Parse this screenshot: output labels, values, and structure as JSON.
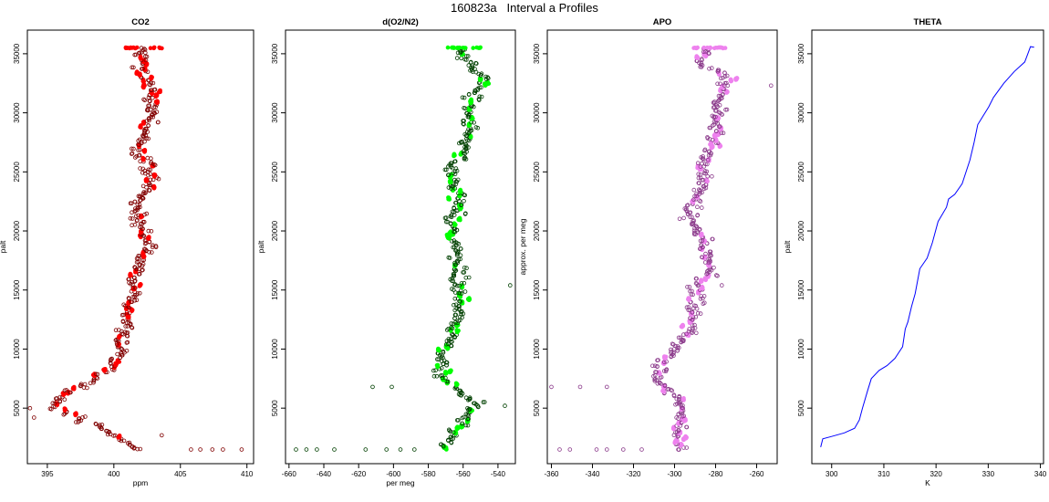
{
  "figure": {
    "title": "160823a   Interval a Profiles"
  },
  "chart_data": [
    {
      "type": "scatter",
      "title": "CO2",
      "xlabel": "ppm",
      "ylabel": "palt",
      "xlim": [
        393.5,
        410.5
      ],
      "ylim": [
        300,
        37000
      ],
      "xticks": [
        395,
        400,
        405,
        410
      ],
      "yticks": [
        5000,
        10000,
        15000,
        20000,
        25000,
        30000,
        35000
      ],
      "color": "#ff0000",
      "edge_color": "#800000",
      "series": [
        {
          "profile": [
            [
              1500,
              401.6
            ],
            [
              2500,
              400.5
            ],
            [
              3500,
              398.5
            ],
            [
              4500,
              397.0
            ],
            [
              5000,
              395.2
            ],
            [
              5800,
              395.8
            ],
            [
              6500,
              396.6
            ],
            [
              7300,
              398.3
            ],
            [
              8200,
              399.6
            ],
            [
              9500,
              400.3
            ],
            [
              11000,
              400.6
            ],
            [
              12500,
              401.0
            ],
            [
              14000,
              401.2
            ],
            [
              16000,
              401.6
            ],
            [
              17500,
              401.9
            ],
            [
              19000,
              402.7
            ],
            [
              20000,
              402.1
            ],
            [
              21000,
              401.8
            ],
            [
              22500,
              401.7
            ],
            [
              24000,
              402.9
            ],
            [
              25500,
              402.6
            ],
            [
              27000,
              401.8
            ],
            [
              28500,
              402.6
            ],
            [
              30000,
              402.8
            ],
            [
              31500,
              402.9
            ],
            [
              33000,
              402.4
            ],
            [
              34500,
              401.9
            ],
            [
              35500,
              402.4
            ]
          ]
        }
      ],
      "outliers": [
        [
          1500,
          405.8
        ],
        [
          1500,
          406.5
        ],
        [
          1500,
          407.4
        ],
        [
          1500,
          408.2
        ],
        [
          1500,
          409.6
        ],
        [
          2700,
          403.6
        ],
        [
          4200,
          394.0
        ],
        [
          5000,
          393.7
        ]
      ]
    },
    {
      "type": "scatter",
      "title": "d(O2/N2)",
      "xlabel": "per meg",
      "ylabel": "palt",
      "xlim": [
        -662,
        -530
      ],
      "ylim": [
        300,
        37000
      ],
      "xticks": [
        -660,
        -640,
        -620,
        -600,
        -580,
        -560,
        -540
      ],
      "yticks": [
        5000,
        10000,
        15000,
        20000,
        25000,
        30000,
        35000
      ],
      "color": "#00ff00",
      "edge_color": "#004000",
      "series": [
        {
          "profile": [
            [
              1500,
              -572
            ],
            [
              2500,
              -567
            ],
            [
              3500,
              -562
            ],
            [
              4500,
              -557
            ],
            [
              5500,
              -552
            ],
            [
              6500,
              -562
            ],
            [
              7500,
              -571
            ],
            [
              9000,
              -573
            ],
            [
              10500,
              -569
            ],
            [
              12000,
              -564
            ],
            [
              13500,
              -562
            ],
            [
              15000,
              -562
            ],
            [
              16500,
              -562
            ],
            [
              18000,
              -564
            ],
            [
              19500,
              -566
            ],
            [
              21000,
              -565
            ],
            [
              22500,
              -563
            ],
            [
              24000,
              -565
            ],
            [
              25500,
              -566
            ],
            [
              27000,
              -558
            ],
            [
              28500,
              -557
            ],
            [
              30000,
              -556
            ],
            [
              31500,
              -553
            ],
            [
              33000,
              -548
            ],
            [
              34000,
              -557
            ],
            [
              35500,
              -561
            ]
          ]
        }
      ],
      "outliers": [
        [
          1500,
          -656
        ],
        [
          1500,
          -650
        ],
        [
          1500,
          -644
        ],
        [
          1500,
          -634
        ],
        [
          1500,
          -616
        ],
        [
          1500,
          -604
        ],
        [
          1500,
          -596
        ],
        [
          1500,
          -588
        ],
        [
          6800,
          -612
        ],
        [
          6800,
          -601
        ],
        [
          15400,
          -533
        ],
        [
          5200,
          -536
        ]
      ]
    },
    {
      "type": "scatter",
      "title": "APO",
      "xlabel": "",
      "ylabel": "approx. per meg",
      "xlim": [
        -362,
        -250
      ],
      "ylim": [
        300,
        37000
      ],
      "xticks": [
        -360,
        -340,
        -320,
        -300,
        -280,
        -260
      ],
      "yticks": [
        5000,
        10000,
        15000,
        20000,
        25000,
        30000,
        35000
      ],
      "color": "#ee82ee",
      "edge_color": "#8b3a8b",
      "series": [
        {
          "profile": [
            [
              1500,
              -298
            ],
            [
              2500,
              -296
            ],
            [
              3500,
              -298
            ],
            [
              4500,
              -297
            ],
            [
              5500,
              -298
            ],
            [
              6500,
              -302
            ],
            [
              7500,
              -309
            ],
            [
              9000,
              -305
            ],
            [
              10500,
              -296
            ],
            [
              12000,
              -292
            ],
            [
              13500,
              -290
            ],
            [
              15000,
              -289
            ],
            [
              16500,
              -283
            ],
            [
              18000,
              -285
            ],
            [
              19500,
              -286
            ],
            [
              21000,
              -293
            ],
            [
              22500,
              -290
            ],
            [
              24000,
              -285
            ],
            [
              25500,
              -286
            ],
            [
              27000,
              -281
            ],
            [
              28500,
              -280
            ],
            [
              30000,
              -279
            ],
            [
              31500,
              -277
            ],
            [
              33000,
              -273
            ],
            [
              34000,
              -287
            ],
            [
              35500,
              -285
            ]
          ]
        }
      ],
      "outliers": [
        [
          1500,
          -356
        ],
        [
          1500,
          -351
        ],
        [
          1500,
          -338
        ],
        [
          1500,
          -333
        ],
        [
          1500,
          -325
        ],
        [
          1500,
          -316
        ],
        [
          6800,
          -360
        ],
        [
          6800,
          -346
        ],
        [
          6800,
          -333
        ],
        [
          15400,
          -277
        ],
        [
          32300,
          -253
        ]
      ]
    },
    {
      "type": "line",
      "title": "THETA",
      "xlabel": "K",
      "ylabel": "palt",
      "xlim": [
        296.2,
        340.6
      ],
      "ylim": [
        300,
        37000
      ],
      "xticks": [
        300,
        310,
        320,
        330,
        340
      ],
      "yticks": [
        5000,
        10000,
        15000,
        20000,
        25000,
        30000,
        35000
      ],
      "color": "#0000ff",
      "series": [
        {
          "profile": [
            [
              1700,
              297.9
            ],
            [
              2400,
              298.3
            ],
            [
              2600,
              300.0
            ],
            [
              2900,
              302.4
            ],
            [
              3300,
              304.4
            ],
            [
              4000,
              305.3
            ],
            [
              5000,
              305.9
            ],
            [
              6500,
              306.9
            ],
            [
              7500,
              307.6
            ],
            [
              8200,
              309.1
            ],
            [
              8600,
              310.6
            ],
            [
              9200,
              312.1
            ],
            [
              10200,
              313.6
            ],
            [
              11700,
              314.1
            ],
            [
              12300,
              314.6
            ],
            [
              13600,
              315.3
            ],
            [
              14700,
              316.0
            ],
            [
              16800,
              316.9
            ],
            [
              17700,
              318.3
            ],
            [
              19000,
              319.3
            ],
            [
              20800,
              320.4
            ],
            [
              22000,
              322.0
            ],
            [
              22700,
              322.4
            ],
            [
              23100,
              323.6
            ],
            [
              24000,
              325.0
            ],
            [
              26000,
              326.5
            ],
            [
              27500,
              327.3
            ],
            [
              29000,
              328.0
            ],
            [
              30500,
              330.1
            ],
            [
              31300,
              331.0
            ],
            [
              32500,
              333.0
            ],
            [
              33500,
              335.0
            ],
            [
              34300,
              337.0
            ],
            [
              35000,
              337.6
            ],
            [
              35600,
              338.1
            ],
            [
              35550,
              338.8
            ]
          ]
        }
      ]
    }
  ]
}
